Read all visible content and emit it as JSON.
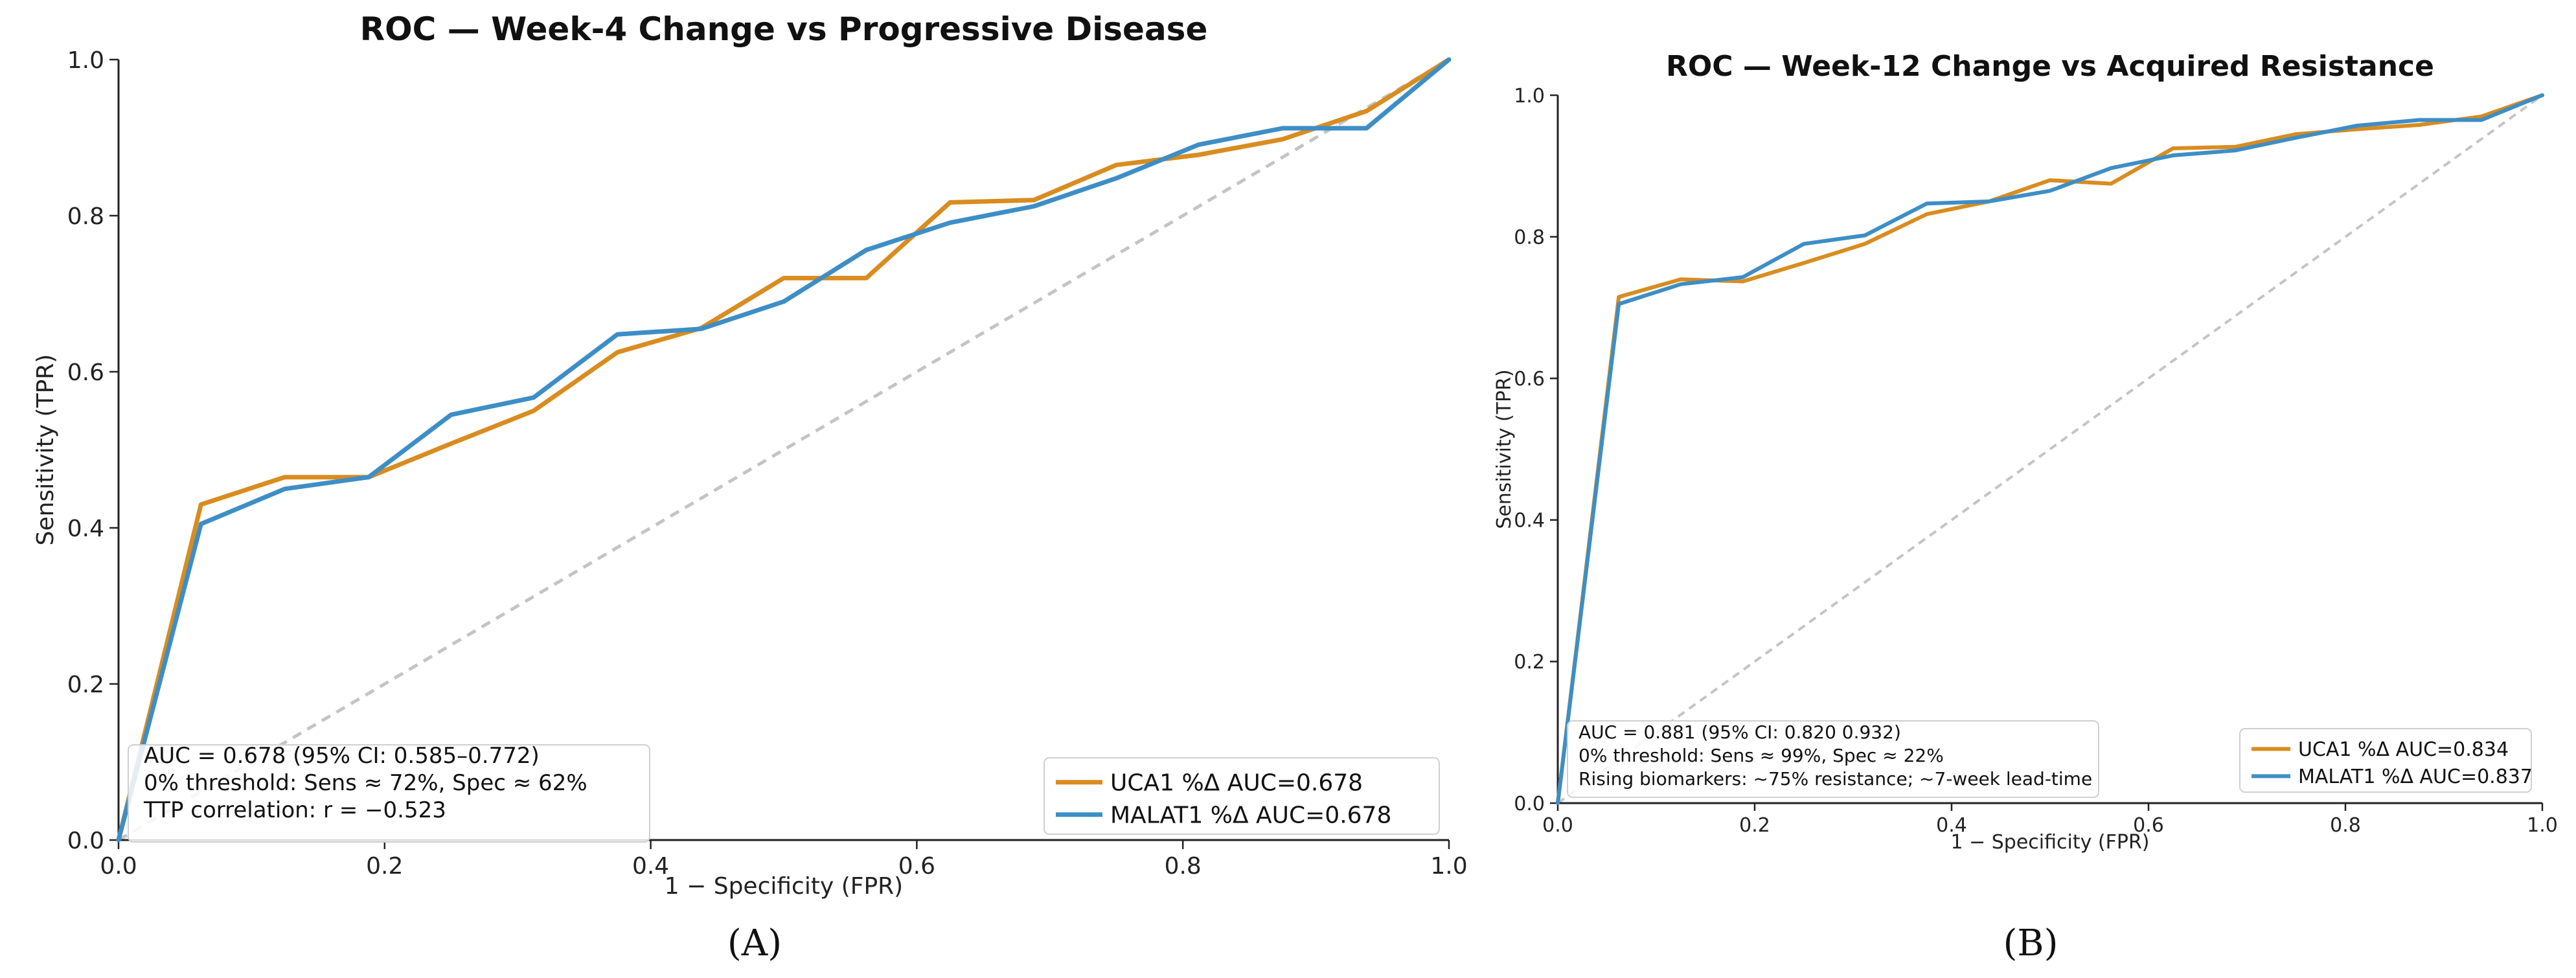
{
  "chart_data": [
    {
      "type": "line",
      "panel_label": "(A)",
      "title": "ROC — Week-4 Change vs Progressive Disease",
      "xlabel": "1 − Specificity (FPR)",
      "ylabel": "Sensitivity (TPR)",
      "xlim": [
        0,
        1
      ],
      "ylim": [
        0,
        1
      ],
      "xticks": [
        "0.0",
        "0.2",
        "0.4",
        "0.6",
        "0.8",
        "1.0"
      ],
      "yticks": [
        "0.0",
        "0.2",
        "0.4",
        "0.6",
        "0.8",
        "1.0"
      ],
      "grid": false,
      "legend_position": "lower-right",
      "series": [
        {
          "name": "UCA1 %Δ  AUC=0.678",
          "color": "#d98c1f",
          "x": [
            0,
            0.062,
            0.125,
            0.188,
            0.25,
            0.312,
            0.375,
            0.438,
            0.5,
            0.562,
            0.625,
            0.688,
            0.75,
            0.812,
            0.875,
            0.938,
            1.0
          ],
          "y": [
            0,
            0.43,
            0.465,
            0.465,
            0.508,
            0.55,
            0.625,
            0.656,
            0.72,
            0.72,
            0.817,
            0.82,
            0.865,
            0.878,
            0.898,
            0.934,
            1.0
          ]
        },
        {
          "name": "MALAT1 %Δ  AUC=0.678",
          "color": "#3d8ec6",
          "x": [
            0,
            0.062,
            0.125,
            0.188,
            0.25,
            0.312,
            0.375,
            0.438,
            0.5,
            0.562,
            0.625,
            0.688,
            0.75,
            0.812,
            0.875,
            0.938,
            1.0
          ],
          "y": [
            0,
            0.405,
            0.45,
            0.465,
            0.545,
            0.567,
            0.648,
            0.655,
            0.69,
            0.756,
            0.791,
            0.812,
            0.848,
            0.891,
            0.912,
            0.912,
            1.0
          ]
        }
      ],
      "diagonal": true,
      "annotation": [
        "AUC = 0.678 (95% CI: 0.585–0.772)",
        "0% threshold: Sens ≈ 72%, Spec ≈ 62%",
        "TTP correlation: r = −0.523"
      ]
    },
    {
      "type": "line",
      "panel_label": "(B)",
      "title": "ROC — Week-12 Change vs Acquired Resistance",
      "xlabel": "1 − Specificity (FPR)",
      "ylabel": "Sensitivity (TPR)",
      "xlim": [
        0,
        1
      ],
      "ylim": [
        0,
        1
      ],
      "xticks": [
        "0.0",
        "0.2",
        "0.4",
        "0.6",
        "0.8",
        "1.0"
      ],
      "yticks": [
        "0.0",
        "0.2",
        "0.4",
        "0.6",
        "0.8",
        "1.0"
      ],
      "grid": false,
      "legend_position": "lower-right",
      "series": [
        {
          "name": "UCA1 %Δ  AUC=0.834",
          "color": "#d98c1f",
          "x": [
            0,
            0.062,
            0.125,
            0.188,
            0.25,
            0.312,
            0.375,
            0.438,
            0.5,
            0.562,
            0.625,
            0.688,
            0.75,
            0.812,
            0.875,
            0.938,
            1.0
          ],
          "y": [
            0,
            0.715,
            0.74,
            0.737,
            0.763,
            0.79,
            0.832,
            0.85,
            0.88,
            0.875,
            0.925,
            0.927,
            0.945,
            0.952,
            0.958,
            0.97,
            1.0
          ]
        },
        {
          "name": "MALAT1 %Δ  AUC=0.837",
          "color": "#3d8ec6",
          "x": [
            0,
            0.062,
            0.125,
            0.188,
            0.25,
            0.312,
            0.375,
            0.438,
            0.5,
            0.562,
            0.625,
            0.688,
            0.75,
            0.812,
            0.875,
            0.938,
            1.0
          ],
          "y": [
            0,
            0.705,
            0.733,
            0.743,
            0.79,
            0.802,
            0.847,
            0.85,
            0.865,
            0.897,
            0.915,
            0.922,
            0.94,
            0.957,
            0.965,
            0.965,
            1.0
          ]
        }
      ],
      "diagonal": true,
      "annotation": [
        "AUC = 0.881 (95% CI: 0.820  0.932)",
        "0% threshold: Sens ≈ 99%, Spec ≈ 22%",
        "Rising biomarkers: ~75% resistance; ~7-week lead-time"
      ]
    }
  ]
}
